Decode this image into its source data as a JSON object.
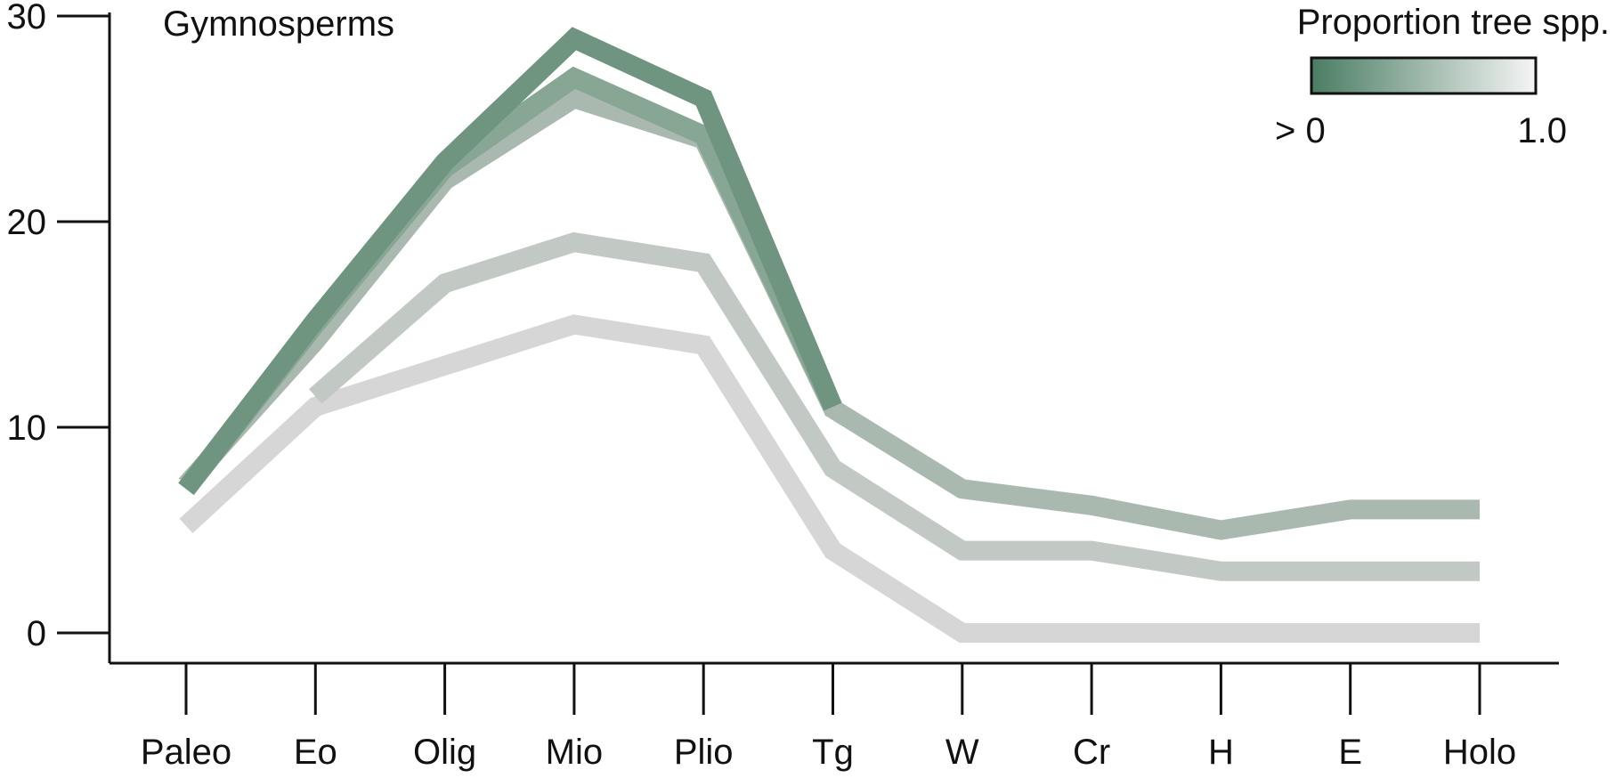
{
  "chart_data": {
    "type": "line",
    "title": "Gymnosperms",
    "xlabel": "",
    "ylabel": "",
    "categories": [
      "Paleo",
      "Eo",
      "Olig",
      "Mio",
      "Plio",
      "Tg",
      "W",
      "Cr",
      "H",
      "E",
      "Holo"
    ],
    "yticks": [
      0,
      10,
      20,
      30
    ],
    "ylim": [
      -1.5,
      30.5
    ],
    "grid": false,
    "series": [
      {
        "color": "#6f9580",
        "values": [
          7.0,
          15.2,
          22.9,
          28.9,
          26.0,
          11.0,
          null,
          null,
          null,
          null,
          null
        ]
      },
      {
        "color": "#87a693",
        "values": [
          7.0,
          15.0,
          22.6,
          27.0,
          24.2,
          11.0,
          null,
          null,
          null,
          null,
          null
        ]
      },
      {
        "color": "#aab9b0",
        "values": [
          7.2,
          14.2,
          22.0,
          26.0,
          24.0,
          10.9,
          7.0,
          6.2,
          5.0,
          6.0,
          6.0
        ]
      },
      {
        "color": "#c2c8c4",
        "values": [
          null,
          11.5,
          17.0,
          19.0,
          18.0,
          8.0,
          4.0,
          4.0,
          3.0,
          3.0,
          3.0
        ]
      },
      {
        "color": "#d6d6d6",
        "values": [
          5.2,
          11.0,
          13.0,
          15.0,
          14.0,
          4.0,
          0.0,
          0.0,
          0.0,
          0.0,
          0.0
        ]
      }
    ],
    "legend": {
      "title": "Proportion tree spp.",
      "min_label": "> 0",
      "max_label": "1.0",
      "gradient_start": "#4a7d63",
      "gradient_end": "#f5f5f5",
      "placement": "top-right"
    }
  }
}
